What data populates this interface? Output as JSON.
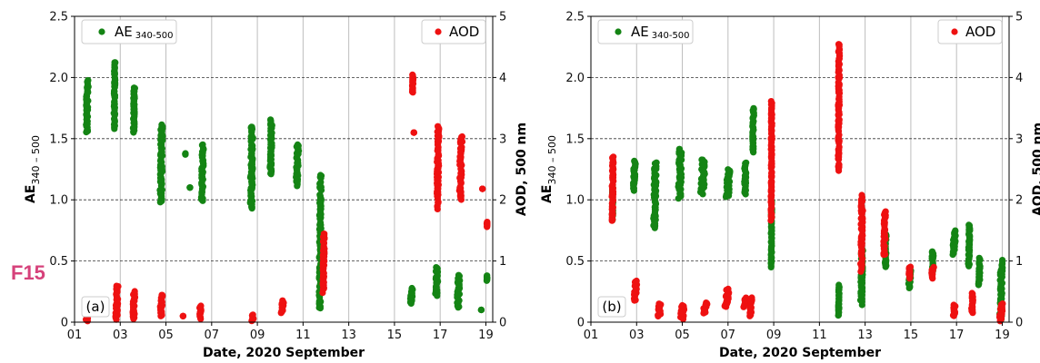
{
  "figure_label": "F15",
  "colors": {
    "ae": "#148414",
    "aod": "#ee1111",
    "fig_label": "#d6427b"
  },
  "chart_data": [
    {
      "type": "scatter",
      "panel_label_text": "(a)",
      "xlabel": "Date, 2020 September",
      "ylabel_left": "AE",
      "ylabel_left_sub": "340 – 500",
      "ylabel_right": "AOD, 500 nm",
      "xlim": [
        1,
        19.3
      ],
      "ylim_left": [
        0,
        2.5
      ],
      "ylim_right": [
        0,
        5
      ],
      "xticks": [
        1,
        3,
        5,
        7,
        9,
        11,
        13,
        15,
        17,
        19
      ],
      "xtick_labels": [
        "01",
        "03",
        "05",
        "07",
        "09",
        "11",
        "13",
        "15",
        "17",
        "19"
      ],
      "yticks_left": [
        "0",
        "0.5",
        "1.0",
        "1.5",
        "2.0",
        "2.5"
      ],
      "yticks_right": [
        "0",
        "1",
        "2",
        "3",
        "4",
        "5"
      ],
      "grid": "horizontal dashed + vertical gray",
      "legend": [
        {
          "name": "AE",
          "sub": "340-500",
          "axis": "left",
          "placement": "top-left"
        },
        {
          "name": "AOD",
          "axis": "right",
          "placement": "top-right"
        }
      ],
      "series": [
        {
          "name": "AE",
          "axis": "left",
          "clusters": [
            [
              1.55,
              1.72,
              1.98,
              1.55,
              0.045
            ],
            [
              2.75,
              1.92,
              2.12,
              1.58,
              0.025
            ],
            [
              3.6,
              1.68,
              1.92,
              1.55,
              0.03
            ],
            [
              4.8,
              1.3,
              1.62,
              0.98,
              0.05
            ],
            [
              5.85,
              1.37,
              1.38,
              1.37,
              0.005
            ],
            [
              6.05,
              1.1,
              1.1,
              1.1,
              0.005
            ],
            [
              6.6,
              1.22,
              1.45,
              1.0,
              0.04
            ],
            [
              8.75,
              1.4,
              1.6,
              0.93,
              0.05
            ],
            [
              9.6,
              1.5,
              1.66,
              1.2,
              0.04
            ],
            [
              10.75,
              1.38,
              1.45,
              1.12,
              0.05
            ],
            [
              11.75,
              0.8,
              1.2,
              0.12,
              0.04
            ],
            [
              15.75,
              0.24,
              0.28,
              0.15,
              0.05
            ],
            [
              16.85,
              0.34,
              0.45,
              0.22,
              0.05
            ],
            [
              17.8,
              0.3,
              0.38,
              0.12,
              0.05
            ],
            [
              18.8,
              0.1,
              0.1,
              0.1,
              0.005
            ],
            [
              19.05,
              0.36,
              0.38,
              0.34,
              0.01
            ]
          ]
        },
        {
          "name": "AOD",
          "axis": "right",
          "clusters": [
            [
              1.55,
              0.1,
              0.15,
              0.02,
              0.045
            ],
            [
              2.85,
              0.2,
              0.6,
              0.05,
              0.045
            ],
            [
              3.6,
              0.3,
              0.5,
              0.05,
              0.045
            ],
            [
              4.8,
              0.28,
              0.45,
              0.1,
              0.05
            ],
            [
              5.75,
              0.1,
              0.1,
              0.1,
              0.005
            ],
            [
              6.5,
              0.15,
              0.27,
              0.05,
              0.04
            ],
            [
              8.8,
              0.06,
              0.12,
              0.02,
              0.04
            ],
            [
              10.1,
              0.28,
              0.35,
              0.15,
              0.05
            ],
            [
              11.9,
              0.9,
              1.46,
              0.5,
              0.03
            ],
            [
              15.8,
              3.8,
              4.05,
              3.75,
              0.02
            ],
            [
              15.85,
              3.1,
              3.1,
              3.1,
              0.005
            ],
            [
              16.9,
              2.4,
              3.2,
              1.88,
              0.04
            ],
            [
              17.9,
              2.4,
              3.05,
              2.0,
              0.05
            ],
            [
              18.85,
              2.18,
              2.18,
              2.18,
              0.005
            ],
            [
              19.05,
              1.6,
              1.64,
              1.56,
              0.01
            ]
          ]
        }
      ]
    },
    {
      "type": "scatter",
      "panel_label_text": "(b)",
      "xlabel": "Date, 2020 September",
      "ylabel_left": "AE",
      "ylabel_left_sub": "340 – 500",
      "ylabel_right": "AOD, 500 nm",
      "xlim": [
        1,
        19.3
      ],
      "ylim_left": [
        0,
        2.5
      ],
      "ylim_right": [
        0,
        5
      ],
      "xticks": [
        1,
        3,
        5,
        7,
        9,
        11,
        13,
        15,
        17,
        19
      ],
      "xtick_labels": [
        "01",
        "03",
        "05",
        "07",
        "09",
        "11",
        "13",
        "15",
        "17",
        "19"
      ],
      "yticks_left": [
        "0",
        "0.5",
        "1.0",
        "1.5",
        "2.0",
        "2.5"
      ],
      "yticks_right": [
        "0",
        "1",
        "2",
        "3",
        "4",
        "5"
      ],
      "grid": "horizontal dashed + vertical gray",
      "legend": [
        {
          "name": "AE",
          "sub": "340-500",
          "axis": "left",
          "placement": "top-left"
        },
        {
          "name": "AOD",
          "axis": "right",
          "placement": "top-right"
        }
      ],
      "series": [
        {
          "name": "AE",
          "axis": "left",
          "clusters": [
            [
              1.95,
              0.95,
              1.1,
              0.83,
              0.025
            ],
            [
              2.9,
              1.18,
              1.32,
              1.08,
              0.04
            ],
            [
              3.8,
              1.05,
              1.3,
              0.78,
              0.05
            ],
            [
              4.9,
              1.18,
              1.42,
              1.02,
              0.07
            ],
            [
              5.9,
              1.15,
              1.33,
              1.05,
              0.08
            ],
            [
              7.0,
              1.1,
              1.25,
              1.02,
              0.07
            ],
            [
              7.75,
              1.2,
              1.3,
              1.05,
              0.04
            ],
            [
              8.1,
              1.6,
              1.75,
              1.38,
              0.03
            ],
            [
              8.9,
              0.65,
              0.99,
              0.45,
              0.02
            ],
            [
              11.85,
              0.2,
              0.3,
              0.05,
              0.02
            ],
            [
              12.85,
              0.4,
              0.6,
              0.15,
              0.04
            ],
            [
              13.9,
              0.55,
              0.72,
              0.45,
              0.04
            ],
            [
              14.95,
              0.35,
              0.42,
              0.28,
              0.04
            ],
            [
              15.95,
              0.47,
              0.58,
              0.4,
              0.04
            ],
            [
              16.9,
              0.65,
              0.75,
              0.55,
              0.05
            ],
            [
              17.55,
              0.6,
              0.8,
              0.45,
              0.03
            ],
            [
              18.0,
              0.42,
              0.52,
              0.3,
              0.03
            ],
            [
              18.95,
              0.2,
              0.5,
              0.01,
              0.05
            ]
          ]
        },
        {
          "name": "AOD",
          "axis": "right",
          "clusters": [
            [
              1.95,
              2.3,
              2.7,
              1.65,
              0.03
            ],
            [
              2.95,
              0.5,
              0.68,
              0.35,
              0.05
            ],
            [
              4.0,
              0.2,
              0.3,
              0.1,
              0.07
            ],
            [
              5.0,
              0.15,
              0.28,
              0.05,
              0.07
            ],
            [
              6.0,
              0.25,
              0.32,
              0.15,
              0.07
            ],
            [
              6.95,
              0.45,
              0.55,
              0.25,
              0.07
            ],
            [
              7.75,
              0.35,
              0.4,
              0.25,
              0.05
            ],
            [
              8.0,
              0.25,
              0.4,
              0.1,
              0.04
            ],
            [
              8.9,
              2.2,
              3.6,
              1.65,
              0.02
            ],
            [
              11.85,
              3.5,
              4.55,
              2.5,
              0.03
            ],
            [
              12.85,
              1.3,
              2.05,
              0.85,
              0.04
            ],
            [
              13.85,
              1.4,
              1.82,
              1.1,
              0.04
            ],
            [
              14.95,
              0.8,
              0.9,
              0.72,
              0.04
            ],
            [
              15.95,
              0.82,
              0.9,
              0.72,
              0.04
            ],
            [
              16.9,
              0.2,
              0.28,
              0.1,
              0.04
            ],
            [
              17.7,
              0.3,
              0.48,
              0.15,
              0.04
            ],
            [
              18.95,
              0.12,
              0.3,
              0.02,
              0.06
            ]
          ]
        }
      ]
    }
  ]
}
